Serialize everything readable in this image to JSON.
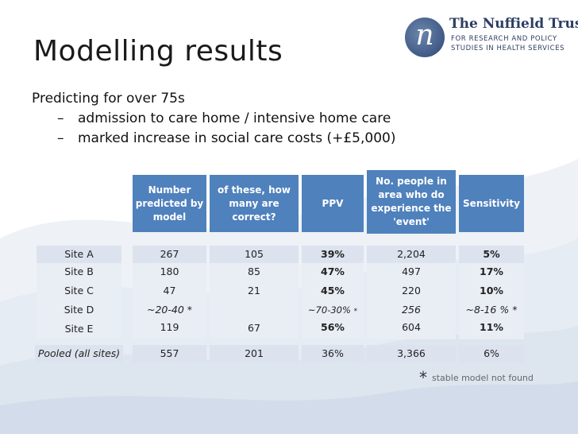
{
  "slide": {
    "title": "Modelling results",
    "logo": {
      "mark": "n",
      "name": "The Nuffield Trust",
      "line1": "FOR RESEARCH AND POLICY",
      "line2": "STUDIES IN HEALTH SERVICES"
    },
    "bullets": {
      "main": "Predicting for over 75s",
      "subs": [
        "admission to care home / intensive home care",
        "marked increase in social care costs (+£5,000)"
      ],
      "dash": "–"
    }
  },
  "table": {
    "headers": [
      "Number predicted by model",
      "of these, how many are correct?",
      "PPV",
      "No. people in area who do experience the 'event'",
      "Sensitivity"
    ],
    "rows": [
      {
        "site": "Site A",
        "predicted": "267",
        "correct": "105",
        "ppv": "39%",
        "experience": "2,204",
        "sensitivity": "5%"
      },
      {
        "site": "Site B",
        "predicted": "180",
        "correct": "85",
        "ppv": "47%",
        "experience": "497",
        "sensitivity": "17%"
      },
      {
        "site": "Site C",
        "predicted": "47",
        "correct": "21",
        "ppv": "45%",
        "experience": "220",
        "sensitivity": "10%"
      },
      {
        "site": "Site D",
        "predicted": "~20-40 *",
        "correct": "",
        "ppv": "~70-30%",
        "ppv_star": "*",
        "experience": "256",
        "sensitivity": "~8-16 % *"
      },
      {
        "site": "Site E",
        "predicted": "119",
        "correct": "67",
        "ppv": "56%",
        "experience": "604",
        "sensitivity": "11%"
      }
    ],
    "pooled": {
      "site": "Pooled (all sites)",
      "predicted": "557",
      "correct": "201",
      "ppv": "36%",
      "experience": "3,366",
      "sensitivity": "6%"
    }
  },
  "footnote": {
    "star": "*",
    "text": "stable model not found"
  },
  "colors": {
    "header_blue": "#4f81bd",
    "text": "#222222"
  }
}
